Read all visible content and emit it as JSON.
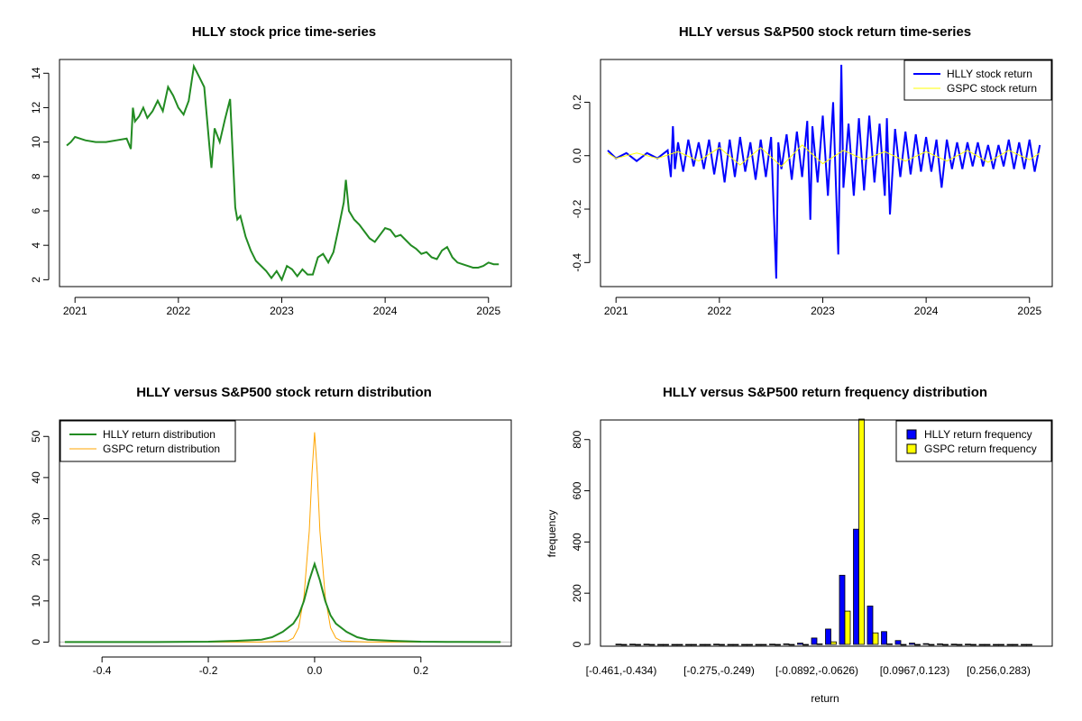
{
  "colors": {
    "price": "#228B22",
    "hlly_return": "#0000FF",
    "gspc_return": "#FFFF00",
    "hlly_density": "#228B22",
    "gspc_density": "#FFA500",
    "hlly_hist": "#0000FF",
    "gspc_hist": "#FFFF00"
  },
  "chart_data": [
    {
      "type": "line",
      "title": "HLLY stock price time-series",
      "xlabel": "",
      "ylabel": "",
      "xlim": [
        2020.85,
        2025.22
      ],
      "ylim": [
        1.6,
        14.8
      ],
      "xticks": [
        2021,
        2022,
        2023,
        2024,
        2025
      ],
      "xtick_labels": [
        "2021",
        "2022",
        "2023",
        "2024",
        "2025"
      ],
      "yticks": [
        2,
        4,
        6,
        8,
        10,
        12,
        14
      ],
      "ytick_labels": [
        "2",
        "4",
        "6",
        "8",
        "10",
        "12",
        "14"
      ],
      "series": [
        {
          "name": "HLLY price",
          "x": [
            2020.92,
            2020.96,
            2021.0,
            2021.05,
            2021.1,
            2021.2,
            2021.3,
            2021.4,
            2021.5,
            2021.54,
            2021.56,
            2021.58,
            2021.62,
            2021.66,
            2021.7,
            2021.75,
            2021.8,
            2021.85,
            2021.9,
            2021.95,
            2022.0,
            2022.05,
            2022.1,
            2022.15,
            2022.2,
            2022.25,
            2022.3,
            2022.32,
            2022.35,
            2022.4,
            2022.45,
            2022.5,
            2022.55,
            2022.57,
            2022.6,
            2022.65,
            2022.7,
            2022.75,
            2022.8,
            2022.85,
            2022.9,
            2022.95,
            2023.0,
            2023.05,
            2023.1,
            2023.15,
            2023.2,
            2023.25,
            2023.3,
            2023.35,
            2023.4,
            2023.45,
            2023.5,
            2023.55,
            2023.6,
            2023.62,
            2023.65,
            2023.7,
            2023.75,
            2023.8,
            2023.85,
            2023.9,
            2023.95,
            2024.0,
            2024.05,
            2024.1,
            2024.15,
            2024.2,
            2024.25,
            2024.3,
            2024.35,
            2024.4,
            2024.45,
            2024.5,
            2024.55,
            2024.6,
            2024.65,
            2024.7,
            2024.75,
            2024.8,
            2024.85,
            2024.9,
            2024.95,
            2025.0,
            2025.05,
            2025.1
          ],
          "y": [
            9.8,
            10.0,
            10.3,
            10.2,
            10.1,
            10.0,
            10.0,
            10.1,
            10.2,
            9.6,
            12.0,
            11.2,
            11.5,
            12.0,
            11.4,
            11.8,
            12.4,
            11.8,
            13.2,
            12.7,
            12.0,
            11.6,
            12.4,
            14.4,
            13.8,
            13.2,
            9.8,
            8.5,
            10.8,
            10.0,
            11.3,
            12.5,
            6.2,
            5.5,
            5.7,
            4.5,
            3.7,
            3.1,
            2.8,
            2.5,
            2.1,
            2.5,
            2.0,
            2.8,
            2.6,
            2.2,
            2.6,
            2.3,
            2.3,
            3.3,
            3.5,
            3.0,
            3.6,
            5.0,
            6.5,
            7.8,
            6.0,
            5.5,
            5.2,
            4.8,
            4.4,
            4.2,
            4.6,
            5.0,
            4.9,
            4.5,
            4.6,
            4.3,
            4.0,
            3.8,
            3.5,
            3.6,
            3.3,
            3.2,
            3.7,
            3.9,
            3.3,
            3.0,
            2.9,
            2.8,
            2.7,
            2.7,
            2.8,
            3.0,
            2.9,
            2.9
          ]
        }
      ]
    },
    {
      "type": "line",
      "title": "HLLY versus S&P500 stock return time-series",
      "xlabel": "",
      "ylabel": "",
      "xlim": [
        2020.85,
        2025.22
      ],
      "ylim": [
        -0.49,
        0.36
      ],
      "xticks": [
        2021,
        2022,
        2023,
        2024,
        2025
      ],
      "xtick_labels": [
        "2021",
        "2022",
        "2023",
        "2024",
        "2025"
      ],
      "yticks": [
        -0.4,
        -0.2,
        0.0,
        0.2
      ],
      "ytick_labels": [
        "-0.4",
        "-0.2",
        "0.0",
        "0.2"
      ],
      "legend": {
        "position": "top-right",
        "entries": [
          "HLLY stock return",
          "GSPC stock return"
        ]
      },
      "series": [
        {
          "name": "HLLY stock return",
          "x": [
            2020.92,
            2021.0,
            2021.1,
            2021.2,
            2021.3,
            2021.4,
            2021.5,
            2021.53,
            2021.55,
            2021.57,
            2021.6,
            2021.65,
            2021.7,
            2021.75,
            2021.8,
            2021.85,
            2021.9,
            2021.95,
            2022.0,
            2022.05,
            2022.1,
            2022.15,
            2022.2,
            2022.25,
            2022.3,
            2022.35,
            2022.4,
            2022.45,
            2022.5,
            2022.55,
            2022.57,
            2022.6,
            2022.65,
            2022.7,
            2022.75,
            2022.8,
            2022.85,
            2022.88,
            2022.9,
            2022.95,
            2023.0,
            2023.05,
            2023.1,
            2023.15,
            2023.18,
            2023.2,
            2023.25,
            2023.3,
            2023.35,
            2023.4,
            2023.45,
            2023.5,
            2023.55,
            2023.6,
            2023.62,
            2023.65,
            2023.7,
            2023.75,
            2023.8,
            2023.85,
            2023.9,
            2023.95,
            2024.0,
            2024.05,
            2024.1,
            2024.15,
            2024.2,
            2024.25,
            2024.3,
            2024.35,
            2024.4,
            2024.45,
            2024.5,
            2024.55,
            2024.6,
            2024.65,
            2024.7,
            2024.75,
            2024.8,
            2024.85,
            2024.9,
            2024.95,
            2025.0,
            2025.05,
            2025.1
          ],
          "y": [
            0.02,
            -0.01,
            0.01,
            -0.02,
            0.01,
            -0.01,
            0.02,
            -0.08,
            0.11,
            -0.05,
            0.05,
            -0.06,
            0.06,
            -0.04,
            0.05,
            -0.05,
            0.06,
            -0.07,
            0.05,
            -0.1,
            0.06,
            -0.08,
            0.07,
            -0.06,
            0.05,
            -0.09,
            0.06,
            -0.08,
            0.07,
            -0.46,
            0.05,
            -0.05,
            0.08,
            -0.09,
            0.09,
            -0.08,
            0.13,
            -0.24,
            0.11,
            -0.1,
            0.15,
            -0.15,
            0.2,
            -0.37,
            0.34,
            -0.12,
            0.12,
            -0.15,
            0.14,
            -0.13,
            0.15,
            -0.1,
            0.12,
            -0.15,
            0.14,
            -0.22,
            0.1,
            -0.08,
            0.09,
            -0.07,
            0.08,
            -0.06,
            0.07,
            -0.06,
            0.06,
            -0.12,
            0.06,
            -0.05,
            0.05,
            -0.05,
            0.05,
            -0.04,
            0.05,
            -0.04,
            0.04,
            -0.05,
            0.04,
            -0.04,
            0.06,
            -0.05,
            0.05,
            -0.05,
            0.06,
            -0.06,
            0.04
          ]
        },
        {
          "name": "GSPC stock return",
          "x": [
            2020.92,
            2021.0,
            2021.2,
            2021.4,
            2021.6,
            2021.8,
            2022.0,
            2022.2,
            2022.4,
            2022.6,
            2022.8,
            2023.0,
            2023.2,
            2023.4,
            2023.6,
            2023.8,
            2024.0,
            2024.2,
            2024.4,
            2024.6,
            2024.8,
            2025.0,
            2025.1
          ],
          "y": [
            0.01,
            -0.01,
            0.01,
            -0.01,
            0.015,
            -0.02,
            0.03,
            -0.035,
            0.03,
            -0.04,
            0.04,
            -0.03,
            0.02,
            -0.015,
            0.015,
            -0.02,
            0.015,
            -0.02,
            0.02,
            -0.025,
            0.02,
            -0.015,
            0.01
          ]
        }
      ]
    },
    {
      "type": "line",
      "title": "HLLY versus S&P500 stock return distribution",
      "xlabel": "",
      "ylabel": "",
      "xlim": [
        -0.48,
        0.37
      ],
      "ylim": [
        -1,
        54
      ],
      "xticks": [
        -0.4,
        -0.2,
        0.0,
        0.2
      ],
      "xtick_labels": [
        "-0.4",
        "-0.2",
        "0.0",
        "0.2"
      ],
      "yticks": [
        0,
        10,
        20,
        30,
        40,
        50
      ],
      "ytick_labels": [
        "0",
        "10",
        "20",
        "30",
        "40",
        "50"
      ],
      "legend": {
        "position": "top-left",
        "entries": [
          "HLLY return distribution",
          "GSPC return distribution"
        ]
      },
      "series": [
        {
          "name": "HLLY return distribution",
          "x": [
            -0.47,
            -0.3,
            -0.2,
            -0.15,
            -0.1,
            -0.08,
            -0.06,
            -0.04,
            -0.03,
            -0.02,
            -0.01,
            0.0,
            0.01,
            0.02,
            0.03,
            0.04,
            0.06,
            0.08,
            0.1,
            0.15,
            0.2,
            0.25,
            0.35
          ],
          "y": [
            0,
            0,
            0.1,
            0.3,
            0.6,
            1.2,
            2.5,
            4.5,
            6.5,
            10.0,
            15.0,
            19.0,
            15.0,
            10.0,
            6.5,
            4.5,
            2.5,
            1.2,
            0.6,
            0.3,
            0.1,
            0.05,
            0
          ]
        },
        {
          "name": "GSPC return distribution",
          "x": [
            -0.47,
            -0.1,
            -0.05,
            -0.04,
            -0.03,
            -0.02,
            -0.01,
            -0.005,
            0.0,
            0.005,
            0.01,
            0.02,
            0.03,
            0.04,
            0.05,
            0.1,
            0.35
          ],
          "y": [
            0,
            0,
            0.3,
            1.0,
            3.5,
            11.0,
            27.0,
            41.0,
            51.0,
            41.0,
            27.0,
            11.0,
            3.5,
            1.0,
            0.3,
            0,
            0
          ]
        }
      ]
    },
    {
      "type": "bar",
      "title": "HLLY versus S&P500 return frequency distribution",
      "xlabel": "return",
      "ylabel": "frequency",
      "ylim": [
        0,
        880
      ],
      "yticks": [
        0,
        200,
        400,
        600,
        800
      ],
      "ytick_labels": [
        "0",
        "200",
        "400",
        "600",
        "800"
      ],
      "xtick_labels": [
        "[-0.461,-0.434)",
        "[-0.275,-0.249)",
        "[-0.0892,-0.0626)",
        "[0.0967,0.123)",
        "[0.256,0.283)"
      ],
      "xtick_bins": [
        0,
        7,
        14,
        21,
        27
      ],
      "bin_count": 30,
      "legend": {
        "position": "top-right",
        "entries": [
          "HLLY return frequency",
          "GSPC return frequency"
        ]
      },
      "series": [
        {
          "name": "HLLY return frequency",
          "values": [
            1,
            1,
            1,
            0,
            0,
            0,
            0,
            1,
            0,
            0,
            0,
            1,
            2,
            5,
            25,
            60,
            270,
            450,
            150,
            50,
            15,
            5,
            3,
            2,
            1,
            1,
            0,
            0,
            0,
            0
          ]
        },
        {
          "name": "GSPC return frequency",
          "values": [
            0,
            0,
            0,
            0,
            0,
            0,
            0,
            0,
            0,
            0,
            0,
            0,
            0,
            0,
            2,
            10,
            130,
            880,
            45,
            2,
            0,
            0,
            0,
            0,
            0,
            0,
            0,
            0,
            0,
            0
          ]
        }
      ]
    }
  ]
}
